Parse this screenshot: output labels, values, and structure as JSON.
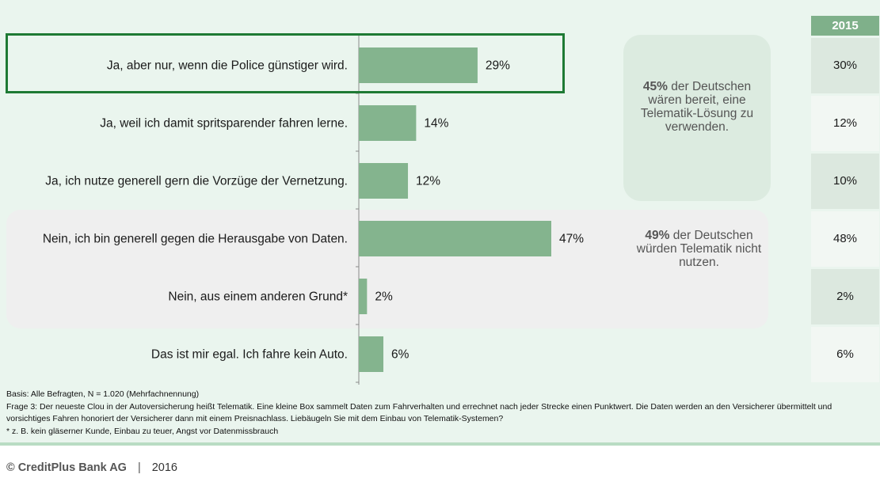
{
  "chart_data": {
    "type": "bar",
    "orientation": "horizontal",
    "categories": [
      "Ja, aber nur, wenn die Police günstiger wird.",
      "Ja, weil ich damit spritsparender fahren lerne.",
      "Ja, ich nutze generell gern die Vorzüge der Vernetzung.",
      "Nein, ich bin generell gegen die Herausgabe von Daten.",
      "Nein, aus einem anderen Grund*",
      "Das ist mir egal. Ich fahre kein Auto."
    ],
    "values": [
      29,
      14,
      12,
      47,
      2,
      6
    ],
    "value_labels": [
      "29%",
      "14%",
      "12%",
      "47%",
      "2%",
      "6%"
    ],
    "bar_color": "#84b48e",
    "comparison": {
      "header": "2015",
      "values": [
        "30%",
        "12%",
        "10%",
        "48%",
        "2%",
        "6%"
      ]
    },
    "highlighted_category_index": 0
  },
  "callouts": {
    "yes": {
      "bold": "45%",
      "text": " der Deutschen wären bereit, eine Telematik-Lösung zu verwenden."
    },
    "no": {
      "bold": "49%",
      "text": " der Deutschen würden Telematik nicht nutzen."
    }
  },
  "footnotes": {
    "basis": "Basis: Alle Befragten, N = 1.020  (Mehrfachnennung)",
    "question": "Frage 3: Der neueste Clou in der Autoversicherung heißt Telematik. Eine kleine Box sammelt Daten zum Fahrverhalten und errechnet nach jeder Strecke einen Punktwert. Die Daten werden an den Versicherer übermittelt und vorsichtiges Fahren honoriert der Versicherer dann mit einem Preisnachlass. Liebäugeln Sie mit dem Einbau von Telematik-Systemen?",
    "asterisk": "* z. B. kein gläserner Kunde, Einbau zu teuer, Angst vor Datenmissbrauch"
  },
  "footer": {
    "brand": "© CreditPlus Bank AG",
    "separator": "|",
    "year": "2016"
  },
  "colors": {
    "background": "#eaf5ee",
    "highlight_border": "#1e7a34",
    "year_header": "#7fb08a"
  }
}
